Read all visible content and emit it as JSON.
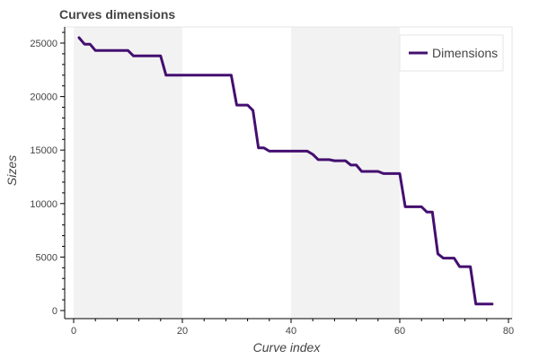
{
  "chart_data": {
    "type": "line",
    "title": "Curves dimensions",
    "xlabel": "Curve index",
    "ylabel": "Sizes",
    "xlim": [
      0,
      80
    ],
    "ylim": [
      0,
      25000
    ],
    "x_ticks": [
      0,
      20,
      40,
      60,
      80
    ],
    "y_ticks": [
      0,
      5000,
      10000,
      15000,
      20000,
      25000
    ],
    "x_tick_labels": [
      "0",
      "20",
      "40",
      "60",
      "80"
    ],
    "y_tick_labels": [
      "0",
      "5000",
      "10000",
      "15000",
      "20000",
      "25000"
    ],
    "shaded_bands": [
      [
        0,
        20
      ],
      [
        40,
        60
      ]
    ],
    "legend": {
      "placement": "top-right"
    },
    "series": [
      {
        "name": "Dimensions",
        "color": "#440f70",
        "x": [
          1,
          2,
          3,
          4,
          5,
          6,
          7,
          8,
          9,
          10,
          11,
          12,
          13,
          14,
          15,
          16,
          17,
          18,
          19,
          20,
          21,
          22,
          23,
          24,
          25,
          26,
          27,
          28,
          29,
          30,
          31,
          32,
          33,
          34,
          35,
          36,
          37,
          38,
          39,
          40,
          41,
          42,
          43,
          44,
          45,
          46,
          47,
          48,
          49,
          50,
          51,
          52,
          53,
          54,
          55,
          56,
          57,
          58,
          59,
          60,
          61,
          62,
          63,
          64,
          65,
          66,
          67,
          68,
          69,
          70,
          71,
          72,
          73,
          74,
          75,
          76,
          77
        ],
        "values": [
          25500,
          24900,
          24900,
          24300,
          24300,
          24300,
          24300,
          24300,
          24300,
          24300,
          23800,
          23800,
          23800,
          23800,
          23800,
          23800,
          22000,
          22000,
          22000,
          22000,
          22000,
          22000,
          22000,
          22000,
          22000,
          22000,
          22000,
          22000,
          22000,
          19200,
          19200,
          19200,
          18700,
          15200,
          15200,
          14900,
          14900,
          14900,
          14900,
          14900,
          14900,
          14900,
          14900,
          14600,
          14100,
          14100,
          14100,
          14000,
          14000,
          14000,
          13600,
          13600,
          13000,
          13000,
          13000,
          13000,
          12800,
          12800,
          12800,
          12800,
          9700,
          9700,
          9700,
          9700,
          9200,
          9200,
          5300,
          4900,
          4900,
          4900,
          4100,
          4100,
          4100,
          600,
          600,
          600,
          600
        ]
      }
    ]
  }
}
